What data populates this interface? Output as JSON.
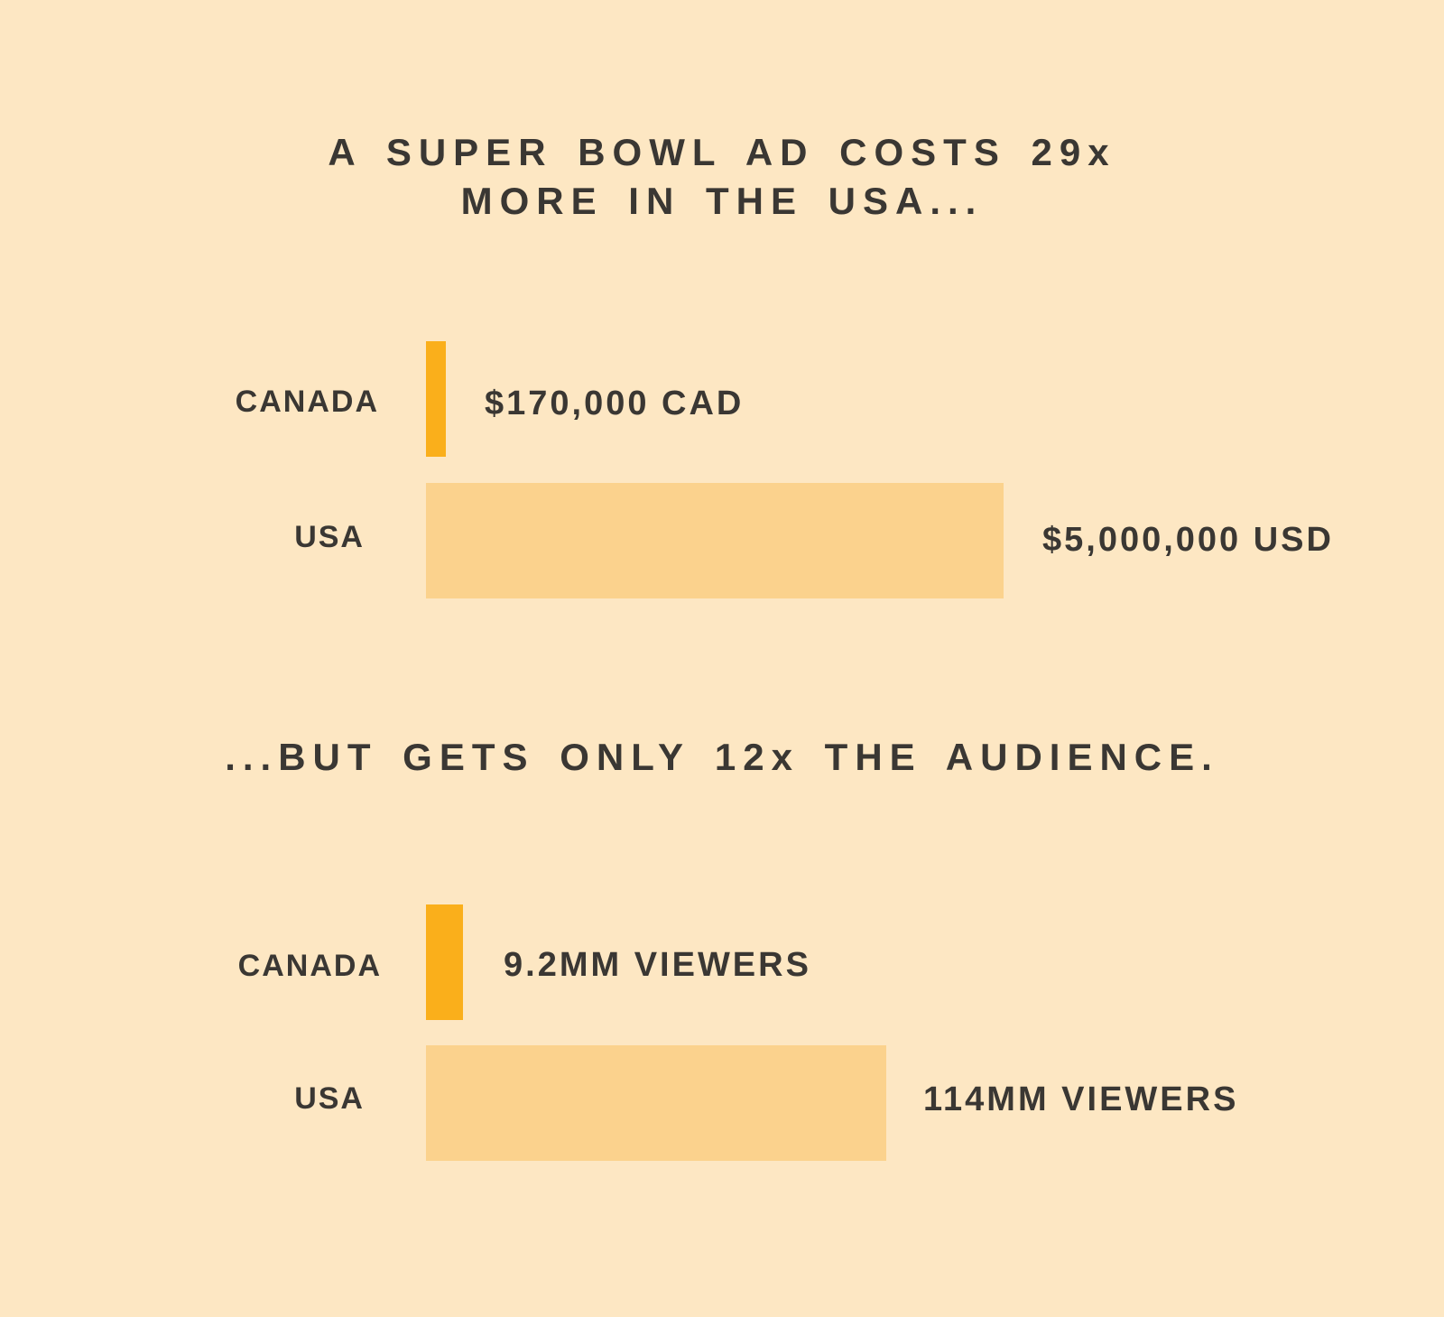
{
  "colors": {
    "background": "#FDE7C3",
    "text": "#3A3733",
    "canada_bar": "#FAAF1B",
    "usa_bar": "#FBD28D"
  },
  "chart_data": [
    {
      "type": "bar",
      "orientation": "horizontal",
      "title": "A SUPER BOWL AD COSTS 29x MORE IN THE USA...",
      "title_lines": [
        "A SUPER BOWL AD COSTS 29x",
        "MORE IN THE USA..."
      ],
      "categories": [
        "CANADA",
        "USA"
      ],
      "values": [
        170000,
        5000000
      ],
      "value_labels": [
        "$170,000 CAD",
        "$5,000,000 USD"
      ],
      "bar_colors": [
        "#FAAF1B",
        "#FBD28D"
      ],
      "unit": "currency",
      "xlim": [
        0,
        5000000
      ],
      "grid": false,
      "legend": false
    },
    {
      "type": "bar",
      "orientation": "horizontal",
      "title": "...BUT GETS ONLY 12x THE AUDIENCE.",
      "title_lines": [
        "...BUT GETS ONLY 12x THE AUDIENCE."
      ],
      "categories": [
        "CANADA",
        "USA"
      ],
      "values": [
        9200000,
        114000000
      ],
      "value_labels": [
        "9.2MM VIEWERS",
        "114MM VIEWERS"
      ],
      "bar_colors": [
        "#FAAF1B",
        "#FBD28D"
      ],
      "unit": "viewers",
      "xlim": [
        0,
        114000000
      ],
      "grid": false,
      "legend": false
    }
  ]
}
